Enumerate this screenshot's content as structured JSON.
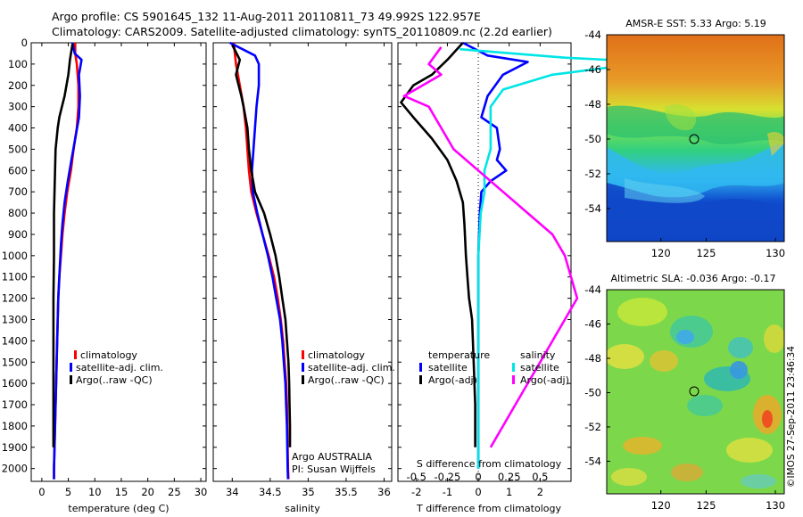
{
  "header": {
    "line1": "Argo profile: CS 5901645_132 11-Aug-2011 20110811_73 49.992S 122.957E",
    "line2": "Climatology: CARS2009. Satellite-adjusted climatology: synTS_20110809.nc (2.2d earlier)"
  },
  "colors": {
    "clim": "#ff0000",
    "sat": "#0000ff",
    "argo": "#000000",
    "sat_sal": "#00e5e5",
    "argo_sal": "#ff00ff"
  },
  "chart_data": [
    {
      "type": "line",
      "name": "temperature",
      "xlabel": "temperature (deg C)",
      "ylabel": "",
      "xlim": [
        -2,
        31
      ],
      "ylim": [
        2060,
        0
      ],
      "xticks": [
        0,
        5,
        10,
        15,
        20,
        25,
        30
      ],
      "yticks": [
        0,
        100,
        200,
        300,
        400,
        500,
        600,
        700,
        800,
        900,
        1000,
        1100,
        1200,
        1300,
        1400,
        1500,
        1600,
        1700,
        1800,
        1900,
        2000
      ],
      "legend": [
        "climatology",
        "satellite-adj. clim.",
        "Argo(..raw -QC)"
      ],
      "series": [
        {
          "name": "climatology",
          "color": "#ff0000",
          "points": [
            [
              6.3,
              0
            ],
            [
              6.3,
              50
            ],
            [
              6.6,
              100
            ],
            [
              6.9,
              200
            ],
            [
              6.9,
              300
            ],
            [
              6.6,
              400
            ],
            [
              6.0,
              500
            ],
            [
              5.5,
              600
            ],
            [
              4.8,
              700
            ],
            [
              4.3,
              800
            ],
            [
              3.9,
              900
            ],
            [
              3.6,
              1000
            ],
            [
              3.3,
              1100
            ],
            [
              3.1,
              1200
            ],
            [
              3.0,
              1300
            ],
            [
              2.9,
              1400
            ],
            [
              2.8,
              1500
            ],
            [
              2.7,
              1600
            ],
            [
              2.6,
              1700
            ],
            [
              2.5,
              1800
            ],
            [
              2.4,
              1900
            ],
            [
              2.3,
              2000
            ],
            [
              2.3,
              2050
            ]
          ]
        },
        {
          "name": "satellite-adj. clim.",
          "color": "#0000ff",
          "points": [
            [
              5.8,
              0
            ],
            [
              6.2,
              50
            ],
            [
              7.5,
              80
            ],
            [
              7.0,
              150
            ],
            [
              7.2,
              250
            ],
            [
              7.0,
              350
            ],
            [
              6.3,
              450
            ],
            [
              5.6,
              550
            ],
            [
              4.9,
              650
            ],
            [
              4.3,
              750
            ],
            [
              3.9,
              850
            ],
            [
              3.6,
              950
            ],
            [
              3.3,
              1100
            ],
            [
              3.1,
              1200
            ],
            [
              3.0,
              1300
            ],
            [
              2.9,
              1400
            ],
            [
              2.8,
              1500
            ],
            [
              2.7,
              1600
            ],
            [
              2.6,
              1700
            ],
            [
              2.5,
              1800
            ],
            [
              2.4,
              1900
            ],
            [
              2.3,
              2000
            ],
            [
              2.3,
              2050
            ]
          ]
        },
        {
          "name": "Argo(..raw -QC)",
          "color": "#000000",
          "points": [
            [
              5.8,
              5
            ],
            [
              5.3,
              80
            ],
            [
              5.0,
              150
            ],
            [
              4.3,
              250
            ],
            [
              3.8,
              300
            ],
            [
              3.3,
              350
            ],
            [
              3.0,
              400
            ],
            [
              2.8,
              450
            ],
            [
              2.6,
              500
            ],
            [
              2.5,
              600
            ],
            [
              2.4,
              700
            ],
            [
              2.3,
              800
            ],
            [
              2.3,
              900
            ],
            [
              2.3,
              1000
            ],
            [
              2.2,
              1200
            ],
            [
              2.2,
              1400
            ],
            [
              2.2,
              1600
            ],
            [
              2.2,
              1800
            ],
            [
              2.2,
              1900
            ]
          ]
        }
      ]
    },
    {
      "type": "line",
      "name": "salinity",
      "xlabel": "salinity",
      "ylabel": "",
      "xlim": [
        33.75,
        36.1
      ],
      "ylim": [
        2060,
        0
      ],
      "xticks": [
        34,
        34.5,
        35,
        35.5,
        36
      ],
      "xticklabels": [
        "34",
        "34.5",
        "35",
        "35.5",
        "36"
      ],
      "legend": [
        "climatology",
        "satellite-adj. clim.",
        "Argo(..raw -QC)"
      ],
      "annotation": [
        "Argo AUSTRALIA",
        "PI: Susan Wijffels"
      ],
      "series": [
        {
          "name": "climatology",
          "color": "#ff0000",
          "points": [
            [
              34.02,
              0
            ],
            [
              34.05,
              100
            ],
            [
              34.1,
              200
            ],
            [
              34.15,
              300
            ],
            [
              34.18,
              400
            ],
            [
              34.2,
              500
            ],
            [
              34.22,
              600
            ],
            [
              34.25,
              700
            ],
            [
              34.32,
              800
            ],
            [
              34.4,
              900
            ],
            [
              34.48,
              1000
            ],
            [
              34.55,
              1100
            ],
            [
              34.6,
              1200
            ],
            [
              34.64,
              1300
            ],
            [
              34.67,
              1400
            ],
            [
              34.69,
              1500
            ],
            [
              34.71,
              1600
            ],
            [
              34.72,
              1700
            ],
            [
              34.725,
              1800
            ],
            [
              34.73,
              1900
            ],
            [
              34.735,
              2000
            ],
            [
              34.74,
              2050
            ]
          ]
        },
        {
          "name": "satellite-adj. clim.",
          "color": "#0000ff",
          "points": [
            [
              33.97,
              0
            ],
            [
              34.3,
              60
            ],
            [
              34.35,
              100
            ],
            [
              34.35,
              200
            ],
            [
              34.32,
              300
            ],
            [
              34.3,
              400
            ],
            [
              34.28,
              500
            ],
            [
              34.26,
              600
            ],
            [
              34.27,
              700
            ],
            [
              34.33,
              800
            ],
            [
              34.4,
              900
            ],
            [
              34.47,
              1000
            ],
            [
              34.53,
              1100
            ],
            [
              34.58,
              1200
            ],
            [
              34.63,
              1300
            ],
            [
              34.66,
              1400
            ],
            [
              34.68,
              1500
            ],
            [
              34.7,
              1600
            ],
            [
              34.71,
              1700
            ],
            [
              34.72,
              1800
            ],
            [
              34.725,
              1900
            ],
            [
              34.73,
              2000
            ],
            [
              34.735,
              2050
            ]
          ]
        },
        {
          "name": "Argo(..raw -QC)",
          "color": "#000000",
          "points": [
            [
              34.0,
              10
            ],
            [
              34.1,
              80
            ],
            [
              34.05,
              150
            ],
            [
              34.12,
              250
            ],
            [
              34.15,
              300
            ],
            [
              34.2,
              400
            ],
            [
              34.22,
              500
            ],
            [
              34.25,
              600
            ],
            [
              34.3,
              700
            ],
            [
              34.42,
              800
            ],
            [
              34.5,
              900
            ],
            [
              34.57,
              1000
            ],
            [
              34.62,
              1100
            ],
            [
              34.66,
              1200
            ],
            [
              34.7,
              1300
            ],
            [
              34.72,
              1400
            ],
            [
              34.74,
              1500
            ],
            [
              34.75,
              1600
            ],
            [
              34.755,
              1700
            ],
            [
              34.76,
              1800
            ],
            [
              34.76,
              1900
            ]
          ]
        }
      ]
    },
    {
      "type": "line",
      "name": "difference",
      "xlabel": "T difference from climatology",
      "xlabel_top": "S difference from climatology",
      "xlim": [
        -2.6,
        3.0
      ],
      "ylim": [
        2060,
        0
      ],
      "xticks": [
        -2,
        -1,
        0,
        1,
        2
      ],
      "s_ticks": [
        -0.5,
        -0.25,
        0,
        0.25,
        0.5
      ],
      "s_ticklabels": [
        "-0.5",
        "-0.25",
        "0",
        "0.25",
        "0.5"
      ],
      "legend": {
        "temperature_title": "temperature",
        "salinity_title": "salinity",
        "entries": [
          "satellite",
          "Argo(-adj)",
          "satellite",
          "Argo(-adj)"
        ]
      },
      "series": [
        {
          "name": "satellite",
          "group": "temperature",
          "color": "#0000ff",
          "points": [
            [
              -0.5,
              0
            ],
            [
              0.3,
              60
            ],
            [
              1.6,
              90
            ],
            [
              0.8,
              150
            ],
            [
              0.3,
              250
            ],
            [
              0.2,
              300
            ],
            [
              0.1,
              350
            ],
            [
              0.6,
              400
            ],
            [
              0.7,
              500
            ],
            [
              0.6,
              550
            ],
            [
              0.9,
              600
            ],
            [
              0.4,
              650
            ],
            [
              0.1,
              700
            ],
            [
              0.05,
              800
            ],
            [
              0.0,
              1000
            ],
            [
              0.0,
              1500
            ],
            [
              0.0,
              2000
            ]
          ]
        },
        {
          "name": "Argo(-adj)",
          "group": "temperature",
          "color": "#000000",
          "points": [
            [
              -0.5,
              0
            ],
            [
              -1.0,
              80
            ],
            [
              -1.5,
              150
            ],
            [
              -2.1,
              200
            ],
            [
              -2.5,
              280
            ],
            [
              -2.1,
              350
            ],
            [
              -1.5,
              450
            ],
            [
              -1.0,
              550
            ],
            [
              -0.7,
              650
            ],
            [
              -0.5,
              750
            ],
            [
              -0.45,
              850
            ],
            [
              -0.4,
              1000
            ],
            [
              -0.35,
              1100
            ],
            [
              -0.3,
              1200
            ],
            [
              -0.2,
              1300
            ],
            [
              -0.15,
              1500
            ],
            [
              -0.1,
              1700
            ],
            [
              -0.1,
              1800
            ],
            [
              -0.1,
              1900
            ]
          ]
        },
        {
          "name": "satellite",
          "group": "salinity",
          "color": "#00e5e5",
          "points": [
            [
              -0.15,
              30
            ],
            [
              0.7,
              70
            ],
            [
              1.4,
              90
            ],
            [
              0.6,
              150
            ],
            [
              0.2,
              220
            ],
            [
              0.1,
              300
            ],
            [
              0.1,
              400
            ],
            [
              0.1,
              500
            ],
            [
              0.05,
              600
            ],
            [
              0.05,
              700
            ],
            [
              0.02,
              800
            ],
            [
              0.0,
              1000
            ],
            [
              0.0,
              1500
            ],
            [
              0.0,
              2000
            ]
          ]
        },
        {
          "name": "Argo(-adj)",
          "group": "salinity",
          "color": "#ff00ff",
          "points": [
            [
              -0.3,
              20
            ],
            [
              -0.4,
              100
            ],
            [
              -0.3,
              150
            ],
            [
              -0.6,
              250
            ],
            [
              -0.4,
              300
            ],
            [
              -0.3,
              400
            ],
            [
              -0.2,
              500
            ],
            [
              0.0,
              600
            ],
            [
              0.2,
              700
            ],
            [
              0.4,
              800
            ],
            [
              0.6,
              900
            ],
            [
              0.7,
              1000
            ],
            [
              0.75,
              1100
            ],
            [
              0.8,
              1200
            ],
            [
              0.7,
              1300
            ],
            [
              0.6,
              1400
            ],
            [
              0.5,
              1500
            ],
            [
              0.4,
              1600
            ],
            [
              0.3,
              1700
            ],
            [
              0.2,
              1800
            ],
            [
              0.1,
              1900
            ]
          ]
        }
      ]
    }
  ],
  "maps": {
    "sst": {
      "title": "AMSR-E SST: 5.33 Argo: 5.19",
      "xticks": [
        "120",
        "125",
        "130"
      ],
      "yticks": [
        "-44",
        "-46",
        "-48",
        "-50",
        "-52",
        "-54"
      ]
    },
    "sla": {
      "title": "Altimetric SLA: -0.036 Argo: -0.17",
      "xticks": [
        "120",
        "125",
        "130"
      ],
      "yticks": [
        "-44",
        "-46",
        "-48",
        "-50",
        "-52",
        "-54"
      ]
    }
  },
  "credit": "©IMOS 27-Sep-2011 23:46:34"
}
